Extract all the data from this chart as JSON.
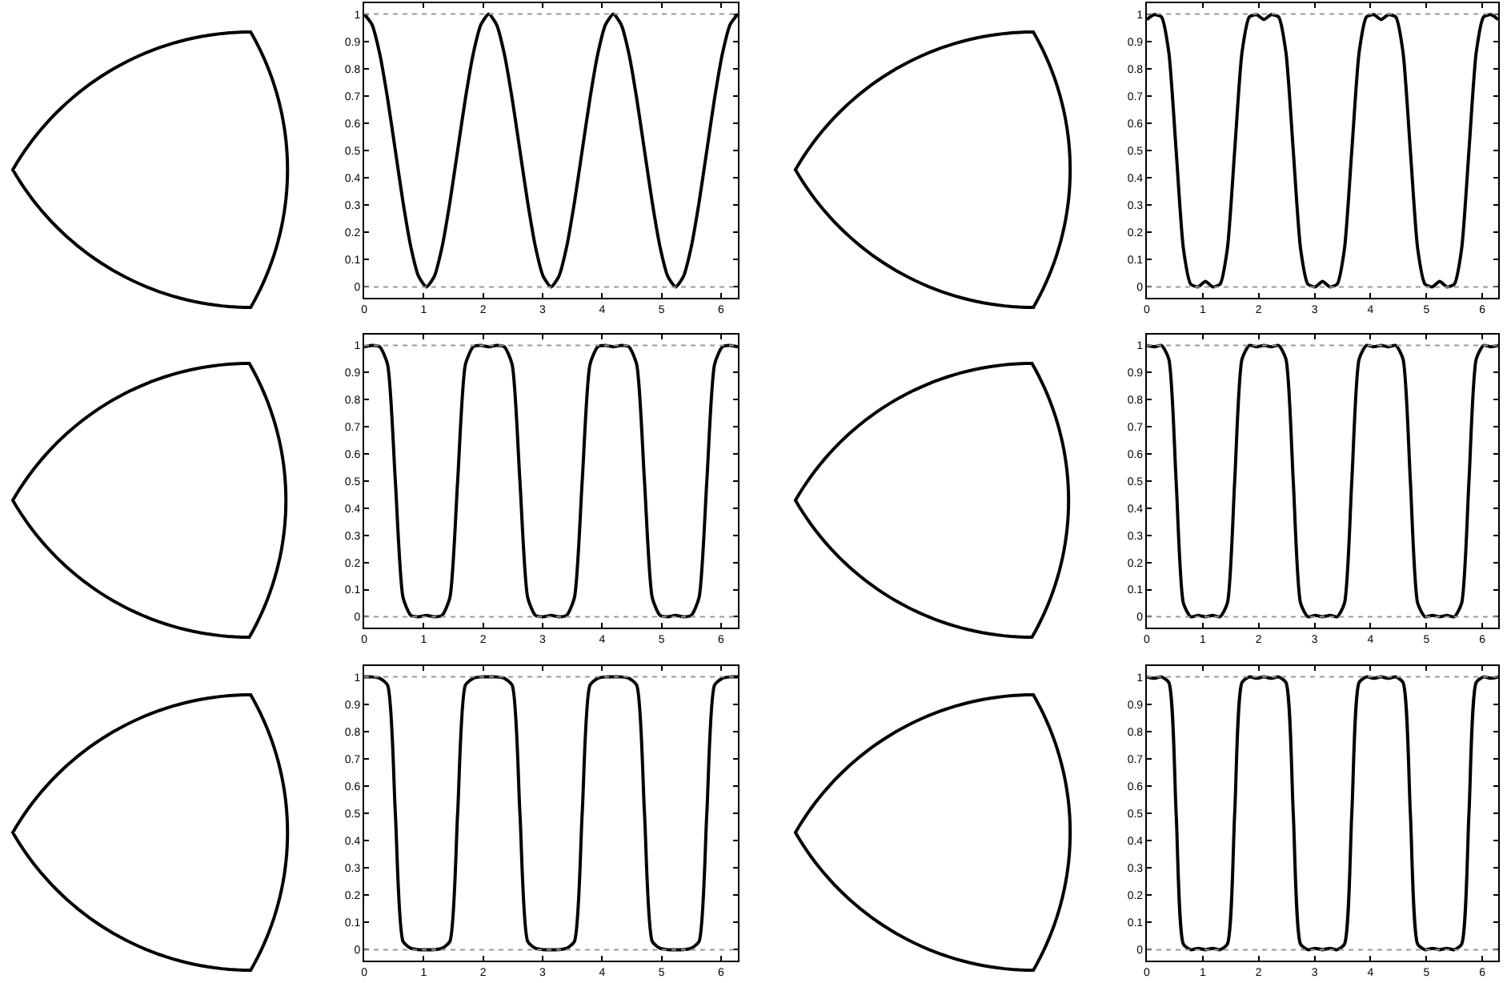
{
  "chart_data": [
    {
      "type": "line",
      "x": [
        0,
        0.131,
        0.262,
        0.393,
        0.524,
        0.654,
        0.785,
        0.916,
        1.047,
        1.178,
        1.309,
        1.44,
        1.571,
        1.702,
        1.833,
        1.963,
        2.094,
        2.225,
        2.356,
        2.487,
        2.618,
        2.749,
        2.88,
        3.011,
        3.142,
        3.272,
        3.403,
        3.534,
        3.665,
        3.796,
        3.927,
        4.058,
        4.189,
        4.32,
        4.451,
        4.581,
        4.712,
        4.843,
        4.974,
        5.105,
        5.236,
        5.367,
        5.498,
        5.629,
        5.76,
        5.89,
        6.021,
        6.152,
        6.283
      ],
      "series": [
        {
          "color": "#000000",
          "values": [
            1,
            0.962,
            0.854,
            0.691,
            0.5,
            0.309,
            0.146,
            0.038,
            0,
            0.038,
            0.146,
            0.309,
            0.5,
            0.691,
            0.854,
            0.962,
            1,
            0.962,
            0.854,
            0.691,
            0.5,
            0.309,
            0.146,
            0.038,
            0,
            0.038,
            0.146,
            0.309,
            0.5,
            0.691,
            0.854,
            0.962,
            1,
            0.962,
            0.854,
            0.691,
            0.5,
            0.309,
            0.146,
            0.038,
            0,
            0.038,
            0.146,
            0.309,
            0.5,
            0.691,
            0.854,
            0.962,
            1
          ]
        }
      ],
      "xlim": [
        0,
        6.283
      ],
      "ylim": [
        -0.04,
        1.04
      ],
      "xticks": [
        0,
        1,
        2,
        3,
        4,
        5,
        6
      ],
      "yticks": [
        0,
        0.1,
        0.2,
        0.3,
        0.4,
        0.5,
        0.6,
        0.7,
        0.8,
        0.9,
        1
      ],
      "ref_lines": [
        {
          "axis": "y",
          "value": 0,
          "color": "#999999",
          "line_style": "dotted"
        },
        {
          "axis": "y",
          "value": 1,
          "color": "#999999",
          "line_style": "dotted"
        }
      ],
      "grid": false
    },
    {
      "type": "line",
      "x": [
        0,
        0.131,
        0.262,
        0.393,
        0.524,
        0.654,
        0.785,
        0.916,
        1.047,
        1.178,
        1.309,
        1.44,
        1.571,
        1.702,
        1.833,
        1.963,
        2.094,
        2.225,
        2.356,
        2.487,
        2.618,
        2.749,
        2.88,
        3.011,
        3.142,
        3.272,
        3.403,
        3.534,
        3.665,
        3.796,
        3.927,
        4.058,
        4.189,
        4.32,
        4.451,
        4.581,
        4.712,
        4.843,
        4.974,
        5.105,
        5.236,
        5.367,
        5.498,
        5.629,
        5.76,
        5.89,
        6.021,
        6.152,
        6.283
      ],
      "series": [
        {
          "color": "#000000",
          "values": [
            0.98,
            0.998,
            0.99,
            0.86,
            0.5,
            0.14,
            0.01,
            0,
            0.02,
            0,
            0.01,
            0.14,
            0.5,
            0.86,
            0.99,
            0.998,
            0.98,
            0.998,
            0.99,
            0.86,
            0.5,
            0.14,
            0.01,
            0,
            0.02,
            0,
            0.01,
            0.14,
            0.5,
            0.86,
            0.99,
            0.998,
            0.98,
            0.998,
            0.99,
            0.86,
            0.5,
            0.14,
            0.01,
            0,
            0.02,
            0,
            0.01,
            0.14,
            0.5,
            0.86,
            0.99,
            0.998,
            0.98
          ]
        }
      ],
      "xlim": [
        0,
        6.283
      ],
      "ylim": [
        -0.04,
        1.04
      ],
      "xticks": [
        0,
        1,
        2,
        3,
        4,
        5,
        6
      ],
      "yticks": [
        0,
        0.1,
        0.2,
        0.3,
        0.4,
        0.5,
        0.6,
        0.7,
        0.8,
        0.9,
        1
      ],
      "ref_lines": [
        {
          "axis": "y",
          "value": 0,
          "color": "#999999",
          "line_style": "dotted"
        },
        {
          "axis": "y",
          "value": 1,
          "color": "#999999",
          "line_style": "dotted"
        }
      ],
      "grid": false
    },
    {
      "type": "line",
      "x": [
        0,
        0.131,
        0.262,
        0.393,
        0.524,
        0.654,
        0.785,
        0.916,
        1.047,
        1.178,
        1.309,
        1.44,
        1.571,
        1.702,
        1.833,
        1.963,
        2.094,
        2.225,
        2.356,
        2.487,
        2.618,
        2.749,
        2.88,
        3.011,
        3.142,
        3.272,
        3.403,
        3.534,
        3.665,
        3.796,
        3.927,
        4.058,
        4.189,
        4.32,
        4.451,
        4.581,
        4.712,
        4.843,
        4.974,
        5.105,
        5.236,
        5.367,
        5.498,
        5.629,
        5.76,
        5.89,
        6.021,
        6.152,
        6.283
      ],
      "series": [
        {
          "color": "#000000",
          "values": [
            0.995,
            1,
            0.995,
            0.93,
            0.5,
            0.07,
            0.005,
            0,
            0.005,
            0,
            0.005,
            0.07,
            0.5,
            0.93,
            0.995,
            1,
            0.995,
            1,
            0.995,
            0.93,
            0.5,
            0.07,
            0.005,
            0,
            0.005,
            0,
            0.005,
            0.07,
            0.5,
            0.93,
            0.995,
            1,
            0.995,
            1,
            0.995,
            0.93,
            0.5,
            0.07,
            0.005,
            0,
            0.005,
            0,
            0.005,
            0.07,
            0.5,
            0.93,
            0.995,
            1,
            0.995
          ]
        }
      ],
      "xlim": [
        0,
        6.283
      ],
      "ylim": [
        -0.04,
        1.04
      ],
      "xticks": [
        0,
        1,
        2,
        3,
        4,
        5,
        6
      ],
      "yticks": [
        0,
        0.1,
        0.2,
        0.3,
        0.4,
        0.5,
        0.6,
        0.7,
        0.8,
        0.9,
        1
      ],
      "ref_lines": [
        {
          "axis": "y",
          "value": 0,
          "color": "#999999",
          "line_style": "dotted"
        },
        {
          "axis": "y",
          "value": 1,
          "color": "#999999",
          "line_style": "dotted"
        }
      ],
      "grid": false
    },
    {
      "type": "line",
      "x": [
        0,
        0.131,
        0.262,
        0.393,
        0.524,
        0.654,
        0.785,
        0.916,
        1.047,
        1.178,
        1.309,
        1.44,
        1.571,
        1.702,
        1.833,
        1.963,
        2.094,
        2.225,
        2.356,
        2.487,
        2.618,
        2.749,
        2.88,
        3.011,
        3.142,
        3.272,
        3.403,
        3.534,
        3.665,
        3.796,
        3.927,
        4.058,
        4.189,
        4.32,
        4.451,
        4.581,
        4.712,
        4.843,
        4.974,
        5.105,
        5.236,
        5.367,
        5.498,
        5.629,
        5.76,
        5.89,
        6.021,
        6.152,
        6.283
      ],
      "series": [
        {
          "color": "#000000",
          "values": [
            1,
            0.995,
            1,
            0.95,
            0.5,
            0.05,
            0,
            0.005,
            0,
            0.005,
            0,
            0.05,
            0.5,
            0.95,
            1,
            0.995,
            1,
            0.995,
            1,
            0.95,
            0.5,
            0.05,
            0,
            0.005,
            0,
            0.005,
            0,
            0.05,
            0.5,
            0.95,
            1,
            0.995,
            1,
            0.995,
            1,
            0.95,
            0.5,
            0.05,
            0,
            0.005,
            0,
            0.005,
            0,
            0.05,
            0.5,
            0.95,
            1,
            0.995,
            1
          ]
        }
      ],
      "xlim": [
        0,
        6.283
      ],
      "ylim": [
        -0.04,
        1.04
      ],
      "xticks": [
        0,
        1,
        2,
        3,
        4,
        5,
        6
      ],
      "yticks": [
        0,
        0.1,
        0.2,
        0.3,
        0.4,
        0.5,
        0.6,
        0.7,
        0.8,
        0.9,
        1
      ],
      "ref_lines": [
        {
          "axis": "y",
          "value": 0,
          "color": "#999999",
          "line_style": "dotted"
        },
        {
          "axis": "y",
          "value": 1,
          "color": "#999999",
          "line_style": "dotted"
        }
      ],
      "grid": false
    },
    {
      "type": "line",
      "x": [
        0,
        0.131,
        0.262,
        0.393,
        0.524,
        0.654,
        0.785,
        0.916,
        1.047,
        1.178,
        1.309,
        1.44,
        1.571,
        1.702,
        1.833,
        1.963,
        2.094,
        2.225,
        2.356,
        2.487,
        2.618,
        2.749,
        2.88,
        3.011,
        3.142,
        3.272,
        3.403,
        3.534,
        3.665,
        3.796,
        3.927,
        4.058,
        4.189,
        4.32,
        4.451,
        4.581,
        4.712,
        4.843,
        4.974,
        5.105,
        5.236,
        5.367,
        5.498,
        5.629,
        5.76,
        5.89,
        6.021,
        6.152,
        6.283
      ],
      "series": [
        {
          "color": "#000000",
          "values": [
            1,
            1,
            0.995,
            0.97,
            0.5,
            0.03,
            0.005,
            0,
            0,
            0,
            0.005,
            0.03,
            0.5,
            0.97,
            0.995,
            1,
            1,
            1,
            0.995,
            0.97,
            0.5,
            0.03,
            0.005,
            0,
            0,
            0,
            0.005,
            0.03,
            0.5,
            0.97,
            0.995,
            1,
            1,
            1,
            0.995,
            0.97,
            0.5,
            0.03,
            0.005,
            0,
            0,
            0,
            0.005,
            0.03,
            0.5,
            0.97,
            0.995,
            1,
            1
          ]
        }
      ],
      "xlim": [
        0,
        6.283
      ],
      "ylim": [
        -0.04,
        1.04
      ],
      "xticks": [
        0,
        1,
        2,
        3,
        4,
        5,
        6
      ],
      "yticks": [
        0,
        0.1,
        0.2,
        0.3,
        0.4,
        0.5,
        0.6,
        0.7,
        0.8,
        0.9,
        1
      ],
      "ref_lines": [
        {
          "axis": "y",
          "value": 0,
          "color": "#999999",
          "line_style": "dotted"
        },
        {
          "axis": "y",
          "value": 1,
          "color": "#999999",
          "line_style": "dotted"
        }
      ],
      "grid": false
    },
    {
      "type": "line",
      "x": [
        0,
        0.131,
        0.262,
        0.393,
        0.524,
        0.654,
        0.785,
        0.916,
        1.047,
        1.178,
        1.309,
        1.44,
        1.571,
        1.702,
        1.833,
        1.963,
        2.094,
        2.225,
        2.356,
        2.487,
        2.618,
        2.749,
        2.88,
        3.011,
        3.142,
        3.272,
        3.403,
        3.534,
        3.665,
        3.796,
        3.927,
        4.058,
        4.189,
        4.32,
        4.451,
        4.581,
        4.712,
        4.843,
        4.974,
        5.105,
        5.236,
        5.367,
        5.498,
        5.629,
        5.76,
        5.89,
        6.021,
        6.152,
        6.283
      ],
      "series": [
        {
          "color": "#000000",
          "values": [
            1,
            0.995,
            1,
            0.98,
            0.5,
            0.02,
            0,
            0.005,
            0,
            0.005,
            0,
            0.02,
            0.5,
            0.98,
            1,
            0.995,
            1,
            0.995,
            1,
            0.98,
            0.5,
            0.02,
            0,
            0.005,
            0,
            0.005,
            0,
            0.02,
            0.5,
            0.98,
            1,
            0.995,
            1,
            0.995,
            1,
            0.98,
            0.5,
            0.02,
            0,
            0.005,
            0,
            0.005,
            0,
            0.02,
            0.5,
            0.98,
            1,
            0.995,
            1
          ]
        }
      ],
      "xlim": [
        0,
        6.283
      ],
      "ylim": [
        -0.04,
        1.04
      ],
      "xticks": [
        0,
        1,
        2,
        3,
        4,
        5,
        6
      ],
      "yticks": [
        0,
        0.1,
        0.2,
        0.3,
        0.4,
        0.5,
        0.6,
        0.7,
        0.8,
        0.9,
        1
      ],
      "ref_lines": [
        {
          "axis": "y",
          "value": 0,
          "color": "#999999",
          "line_style": "dotted"
        },
        {
          "axis": "y",
          "value": 1,
          "color": "#999999",
          "line_style": "dotted"
        }
      ],
      "grid": false
    }
  ]
}
